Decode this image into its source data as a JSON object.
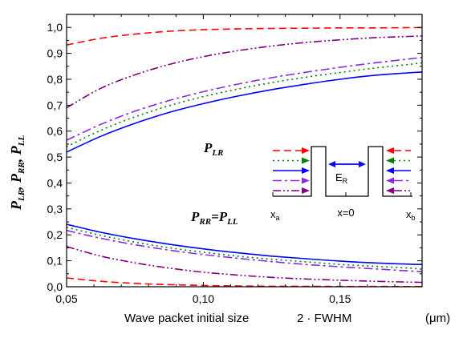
{
  "chart_data": {
    "type": "line",
    "xlabel": "Wave packet initial size",
    "xlabel_factor": "2 · FWHM",
    "xlabel_unit": "(μm)",
    "ylabel_parts": [
      {
        "base": "P",
        "sub": "LR",
        "after": ", "
      },
      {
        "base": "P",
        "sub": "RR",
        "after": ", "
      },
      {
        "base": "P",
        "sub": "LL",
        "after": ""
      }
    ],
    "xlim": [
      0.05,
      0.18
    ],
    "ylim": [
      0.0,
      1.05
    ],
    "x_ticks": [
      0.05,
      0.1,
      0.15
    ],
    "x_tick_labels": [
      "0,05",
      "0,10",
      "0,15"
    ],
    "y_ticks": [
      0.0,
      0.1,
      0.2,
      0.3,
      0.4,
      0.5,
      0.6,
      0.7,
      0.8,
      0.9,
      1.0
    ],
    "y_tick_labels": [
      "0,0",
      "0,1",
      "0,2",
      "0,3",
      "0,4",
      "0,5",
      "0,6",
      "0,7",
      "0,8",
      "0,9",
      "1,0"
    ],
    "annotations": {
      "p_lr": {
        "base": "P",
        "sub": "LR"
      },
      "p_rr_ll": {
        "base1": "P",
        "sub1": "RR",
        "eq": "=",
        "base2": "P",
        "sub2": "LL"
      }
    },
    "styles": [
      {
        "id": "red-dash",
        "color": "#ff0000",
        "dash": "9 5"
      },
      {
        "id": "green-dot",
        "color": "#008000",
        "dash": "2 4"
      },
      {
        "id": "blue-solid",
        "color": "#0000ff",
        "dash": ""
      },
      {
        "id": "violet-dashdot",
        "color": "#8a2be2",
        "dash": "11 4 3 4"
      },
      {
        "id": "purple-dashdotdot",
        "color": "#800080",
        "dash": "10 3 2 3 2 3"
      }
    ],
    "x": [
      0.05,
      0.0625,
      0.075,
      0.0875,
      0.1,
      0.1125,
      0.125,
      0.1375,
      0.15,
      0.1625,
      0.175,
      0.18
    ],
    "series": [
      {
        "group": "P_LR",
        "style": "red-dash",
        "y": [
          0.932,
          0.958,
          0.974,
          0.985,
          0.991,
          0.994,
          0.996,
          0.997,
          0.998,
          0.998,
          0.999,
          0.999
        ]
      },
      {
        "group": "P_LR",
        "style": "purple-dashdotdot",
        "y": [
          0.69,
          0.765,
          0.817,
          0.857,
          0.887,
          0.91,
          0.928,
          0.942,
          0.952,
          0.96,
          0.965,
          0.967
        ]
      },
      {
        "group": "P_LR",
        "style": "violet-dashdot",
        "y": [
          0.565,
          0.626,
          0.677,
          0.718,
          0.752,
          0.781,
          0.806,
          0.827,
          0.846,
          0.863,
          0.878,
          0.884
        ]
      },
      {
        "group": "P_LR",
        "style": "green-dot",
        "y": [
          0.54,
          0.603,
          0.655,
          0.698,
          0.733,
          0.762,
          0.787,
          0.808,
          0.826,
          0.843,
          0.857,
          0.863
        ]
      },
      {
        "group": "P_LR",
        "style": "blue-solid",
        "y": [
          0.519,
          0.58,
          0.63,
          0.672,
          0.706,
          0.735,
          0.76,
          0.781,
          0.8,
          0.815,
          0.825,
          0.828
        ]
      },
      {
        "group": "P_RR=P_LL",
        "style": "blue-solid",
        "y": [
          0.241,
          0.21,
          0.185,
          0.164,
          0.146,
          0.131,
          0.118,
          0.108,
          0.099,
          0.092,
          0.087,
          0.086
        ]
      },
      {
        "group": "P_RR=P_LL",
        "style": "green-dot",
        "y": [
          0.229,
          0.198,
          0.172,
          0.15,
          0.133,
          0.118,
          0.106,
          0.096,
          0.086,
          0.079,
          0.072,
          0.068
        ]
      },
      {
        "group": "P_RR=P_LL",
        "style": "violet-dashdot",
        "y": [
          0.217,
          0.187,
          0.162,
          0.141,
          0.124,
          0.11,
          0.097,
          0.086,
          0.077,
          0.069,
          0.061,
          0.058
        ]
      },
      {
        "group": "P_RR=P_LL",
        "style": "purple-dashdotdot",
        "y": [
          0.155,
          0.118,
          0.092,
          0.072,
          0.056,
          0.045,
          0.036,
          0.03,
          0.025,
          0.021,
          0.018,
          0.017
        ]
      },
      {
        "group": "P_RR=P_LL",
        "style": "red-dash",
        "y": [
          0.034,
          0.021,
          0.013,
          0.008,
          0.005,
          0.003,
          0.002,
          0.0015,
          0.001,
          0.001,
          0.0005,
          0.0005
        ]
      }
    ],
    "inset": {
      "arrow_styles": [
        "red-dash",
        "green-dot",
        "blue-solid",
        "violet-dashdot",
        "purple-dashdotdot"
      ],
      "field_label": {
        "base": "E",
        "sub": "R"
      },
      "x_labels": [
        {
          "base": "x",
          "sub": "a"
        },
        {
          "text": "x=0"
        },
        {
          "base": "x",
          "sub": "b"
        }
      ]
    }
  }
}
